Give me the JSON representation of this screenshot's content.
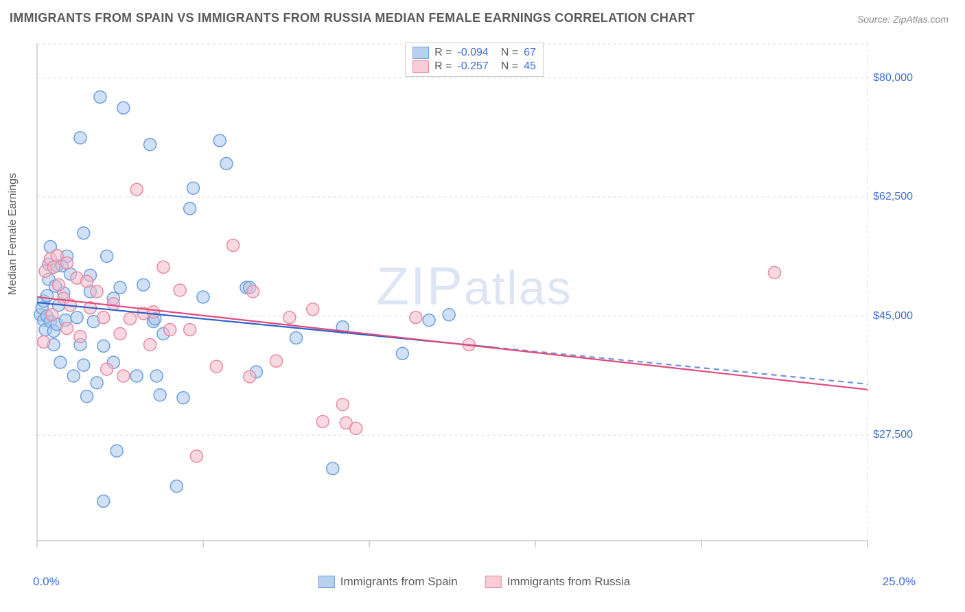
{
  "title": "IMMIGRANTS FROM SPAIN VS IMMIGRANTS FROM RUSSIA MEDIAN FEMALE EARNINGS CORRELATION CHART",
  "source": {
    "label": "Source:",
    "name": "ZipAtlas.com"
  },
  "ylabel": "Median Female Earnings",
  "watermark": {
    "text1": "ZIP",
    "text2": "atlas"
  },
  "chart": {
    "type": "scatter",
    "background_color": "#ffffff",
    "plot_border_color": "#c9c9c9",
    "grid_color": "#d9d9d9",
    "grid_dash": "4,4",
    "xlim": [
      0,
      25
    ],
    "ylim": [
      12000,
      85000
    ],
    "xticks": [
      0,
      5,
      10,
      15,
      20,
      25
    ],
    "yticks": [
      27500,
      45000,
      62500,
      80000
    ],
    "ytick_labels": [
      "$27,500",
      "$45,000",
      "$62,500",
      "$80,000"
    ],
    "xaxis_min_label": "0.0%",
    "xaxis_max_label": "25.0%",
    "marker_radius": 9,
    "marker_stroke_width": 1.5,
    "trend_line_width": 2.2,
    "series": [
      {
        "name": "Immigrants from Spain",
        "fill": "#a9c6ec",
        "stroke": "#6d9fde",
        "fill_opacity": 0.55,
        "legend_swatch_fill": "#b9d0ee",
        "legend_swatch_stroke": "#6d9fde",
        "R": "-0.094",
        "N": "67",
        "trend": {
          "y_at_xmin": 47000,
          "y_at_xmax": 35000,
          "color": "#2e63c9",
          "dash_tail": true
        },
        "points": [
          [
            0.1,
            45200
          ],
          [
            0.2,
            44400
          ],
          [
            0.15,
            46200
          ],
          [
            0.2,
            47200
          ],
          [
            0.25,
            43000
          ],
          [
            0.3,
            45000
          ],
          [
            0.3,
            48000
          ],
          [
            0.35,
            50400
          ],
          [
            0.35,
            52600
          ],
          [
            0.4,
            44200
          ],
          [
            0.4,
            55200
          ],
          [
            0.5,
            40800
          ],
          [
            0.5,
            42800
          ],
          [
            0.55,
            49400
          ],
          [
            0.6,
            52400
          ],
          [
            0.6,
            43800
          ],
          [
            0.65,
            46600
          ],
          [
            0.7,
            38200
          ],
          [
            0.75,
            52400
          ],
          [
            0.8,
            48400
          ],
          [
            0.85,
            44400
          ],
          [
            0.9,
            53800
          ],
          [
            1.0,
            51200
          ],
          [
            1.1,
            36200
          ],
          [
            1.2,
            44800
          ],
          [
            1.3,
            40800
          ],
          [
            1.3,
            71200
          ],
          [
            1.4,
            57200
          ],
          [
            1.4,
            37800
          ],
          [
            1.5,
            33200
          ],
          [
            1.6,
            48600
          ],
          [
            1.6,
            51000
          ],
          [
            1.7,
            44200
          ],
          [
            1.8,
            35200
          ],
          [
            1.9,
            77200
          ],
          [
            2.0,
            40600
          ],
          [
            2.0,
            17800
          ],
          [
            2.1,
            53800
          ],
          [
            2.3,
            38200
          ],
          [
            2.3,
            47600
          ],
          [
            2.4,
            25200
          ],
          [
            2.5,
            49200
          ],
          [
            2.6,
            75600
          ],
          [
            3.0,
            36200
          ],
          [
            3.2,
            49600
          ],
          [
            3.4,
            70200
          ],
          [
            3.5,
            44200
          ],
          [
            3.55,
            44600
          ],
          [
            3.6,
            36200
          ],
          [
            3.7,
            33400
          ],
          [
            3.8,
            42400
          ],
          [
            4.2,
            20000
          ],
          [
            4.4,
            33000
          ],
          [
            4.6,
            60800
          ],
          [
            4.7,
            63800
          ],
          [
            5.0,
            47800
          ],
          [
            5.5,
            70800
          ],
          [
            5.7,
            67400
          ],
          [
            6.3,
            49200
          ],
          [
            6.4,
            49200
          ],
          [
            6.6,
            36800
          ],
          [
            7.8,
            41800
          ],
          [
            8.9,
            22600
          ],
          [
            9.2,
            43400
          ],
          [
            11.0,
            39500
          ],
          [
            11.8,
            44400
          ],
          [
            12.4,
            45200
          ]
        ]
      },
      {
        "name": "Immigrants from Russia",
        "fill": "#f4b9c8",
        "stroke": "#e98aa2",
        "fill_opacity": 0.55,
        "legend_swatch_fill": "#f8cdd7",
        "legend_swatch_stroke": "#e98aa2",
        "R": "-0.257",
        "N": "45",
        "trend": {
          "y_at_xmin": 47800,
          "y_at_xmax": 34200,
          "color": "#e14a7a",
          "dash_tail": false
        },
        "points": [
          [
            0.2,
            41200
          ],
          [
            0.25,
            51600
          ],
          [
            0.4,
            53400
          ],
          [
            0.45,
            45200
          ],
          [
            0.5,
            52200
          ],
          [
            0.6,
            53900
          ],
          [
            0.65,
            49600
          ],
          [
            0.8,
            47600
          ],
          [
            0.9,
            52800
          ],
          [
            0.9,
            43200
          ],
          [
            1.0,
            46600
          ],
          [
            1.2,
            50600
          ],
          [
            1.3,
            42000
          ],
          [
            1.5,
            50100
          ],
          [
            1.6,
            46200
          ],
          [
            1.8,
            48600
          ],
          [
            2.0,
            44800
          ],
          [
            2.1,
            37200
          ],
          [
            2.3,
            46800
          ],
          [
            2.5,
            42400
          ],
          [
            2.6,
            36200
          ],
          [
            2.8,
            44600
          ],
          [
            3.0,
            63600
          ],
          [
            3.2,
            45400
          ],
          [
            3.4,
            40800
          ],
          [
            3.5,
            45600
          ],
          [
            3.8,
            52200
          ],
          [
            4.0,
            43000
          ],
          [
            4.3,
            48800
          ],
          [
            4.6,
            43000
          ],
          [
            4.8,
            24400
          ],
          [
            5.4,
            37600
          ],
          [
            5.9,
            55400
          ],
          [
            6.4,
            36100
          ],
          [
            6.5,
            48600
          ],
          [
            7.2,
            38400
          ],
          [
            7.6,
            44800
          ],
          [
            8.3,
            46000
          ],
          [
            8.6,
            29500
          ],
          [
            9.2,
            32000
          ],
          [
            9.3,
            29300
          ],
          [
            9.6,
            28500
          ],
          [
            11.4,
            44800
          ],
          [
            13.0,
            40800
          ],
          [
            22.2,
            51400
          ]
        ]
      }
    ]
  },
  "legend_bottom": {
    "items": [
      {
        "label": "Immigrants from Spain",
        "fill": "#b9d0ee",
        "stroke": "#6d9fde"
      },
      {
        "label": "Immigrants from Russia",
        "fill": "#f8cdd7",
        "stroke": "#e98aa2"
      }
    ]
  }
}
